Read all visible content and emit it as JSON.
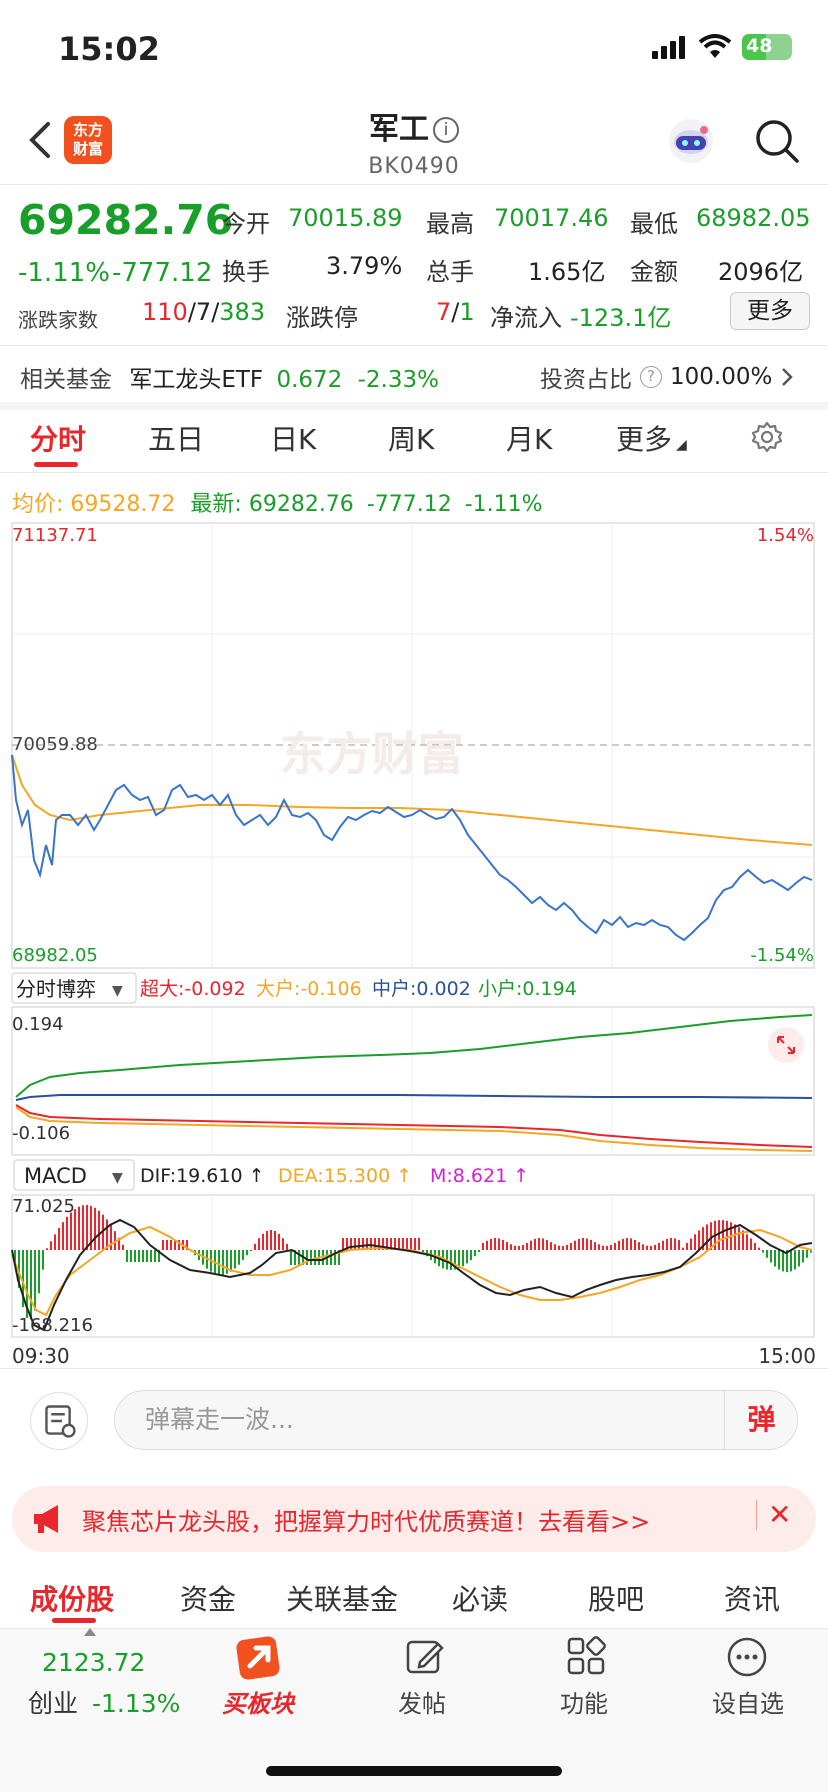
{
  "status": {
    "time": "15:02",
    "battery": "48"
  },
  "header": {
    "logo_line1": "东方",
    "logo_line2": "财富",
    "title": "军工",
    "info_glyph": "i",
    "code": "BK0490"
  },
  "quote": {
    "price": "69282.76",
    "change_pct": "-1.11%",
    "change_abs": "-777.12",
    "open_label": "今开",
    "open": "70015.89",
    "high_label": "最高",
    "high": "70017.46",
    "low_label": "最低",
    "low": "68982.05",
    "turnover_label": "换手",
    "turnover": "3.79%",
    "volume_label": "总手",
    "volume": "1.65亿",
    "amount_label": "金额",
    "amount": "2096亿",
    "breadth_label": "涨跌家数",
    "breadth_up": "110",
    "breadth_flat": "7",
    "breadth_down": "383",
    "limit_label": "涨跌停",
    "limit_up": "7",
    "limit_down": "1",
    "inflow_label": "净流入",
    "inflow": "-123.1亿",
    "more_button": "更多"
  },
  "fund": {
    "label": "相关基金",
    "name": "军工龙头ETF",
    "price": "0.672",
    "change": "-2.33%",
    "ratio_label": "投资占比",
    "ratio": "100.00%"
  },
  "tabs": [
    "分时",
    "五日",
    "日K",
    "周K",
    "月K",
    "更多"
  ],
  "legend": {
    "avg_label": "均价:",
    "avg": "69528.72",
    "latest_label": "最新:",
    "latest": "69282.76",
    "chg": "-777.12",
    "pct": "-1.11%"
  },
  "price_chart": {
    "y_top": "71137.71",
    "y_mid": "70059.88",
    "y_bottom": "68982.05",
    "pct_top": "1.54%",
    "pct_bottom": "-1.54%",
    "watermark": "东方财富"
  },
  "flow_chart": {
    "selector": "分时博弈",
    "super_label": "超大:",
    "super": "-0.092",
    "large_label": "大户:",
    "large": "-0.106",
    "mid_label": "中户:",
    "mid": "0.002",
    "small_label": "小户:",
    "small": "0.194",
    "y_top": "0.194",
    "y_bottom": "-0.106"
  },
  "macd_chart": {
    "selector": "MACD",
    "dif_label": "DIF:",
    "dif": "19.610",
    "dea_label": "DEA:",
    "dea": "15.300",
    "m_label": "M:",
    "m": "8.621",
    "y_top": "71.025",
    "y_bottom": "-168.216"
  },
  "time_axis": {
    "start": "09:30",
    "end": "15:00"
  },
  "comment": {
    "placeholder": "弹幕走一波...",
    "danmu_button": "弹"
  },
  "banner": {
    "text": "聚焦芯片龙头股，把握算力时代优质赛道！去看看>>"
  },
  "bottom_tabs": [
    "成份股",
    "资金",
    "关联基金",
    "必读",
    "股吧",
    "资讯"
  ],
  "nav": {
    "index_value": "2123.72",
    "index_name": "创业",
    "index_change": "-1.13%",
    "buy_label": "买板块",
    "post_label": "发帖",
    "func_label": "功能",
    "watch_label": "设自选"
  },
  "colors": {
    "up": "#e8262c",
    "down": "#1a9e2a",
    "avg": "#f5a623",
    "price_line": "#3a74c8"
  }
}
